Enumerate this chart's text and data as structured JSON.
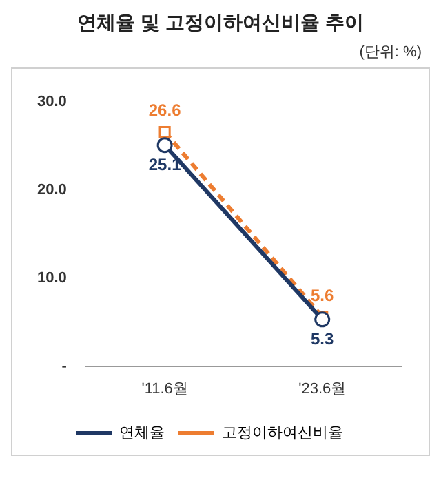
{
  "chart_data": {
    "type": "line",
    "title": "연체율 및 고정이하여신비율 추이",
    "annotations": [
      "(단위: %)"
    ],
    "categories": [
      "'11.6월",
      "'23.6월"
    ],
    "series": [
      {
        "name": "연체율",
        "color": "#1f3864",
        "values": [
          25.1,
          5.3
        ],
        "marker": "circle",
        "line_style": "solid"
      },
      {
        "name": "고정이하여신비율",
        "color": "#ed7d31",
        "values": [
          26.6,
          5.6
        ],
        "marker": "square",
        "line_style": "dashed"
      }
    ],
    "ylim": [
      0,
      30
    ],
    "yticks": [
      {
        "value": 0,
        "label": "-"
      },
      {
        "value": 10,
        "label": "10.0"
      },
      {
        "value": 20,
        "label": "20.0"
      },
      {
        "value": 30,
        "label": "30.0"
      }
    ],
    "grid": false,
    "legend": "bottom",
    "data_labels": true
  }
}
